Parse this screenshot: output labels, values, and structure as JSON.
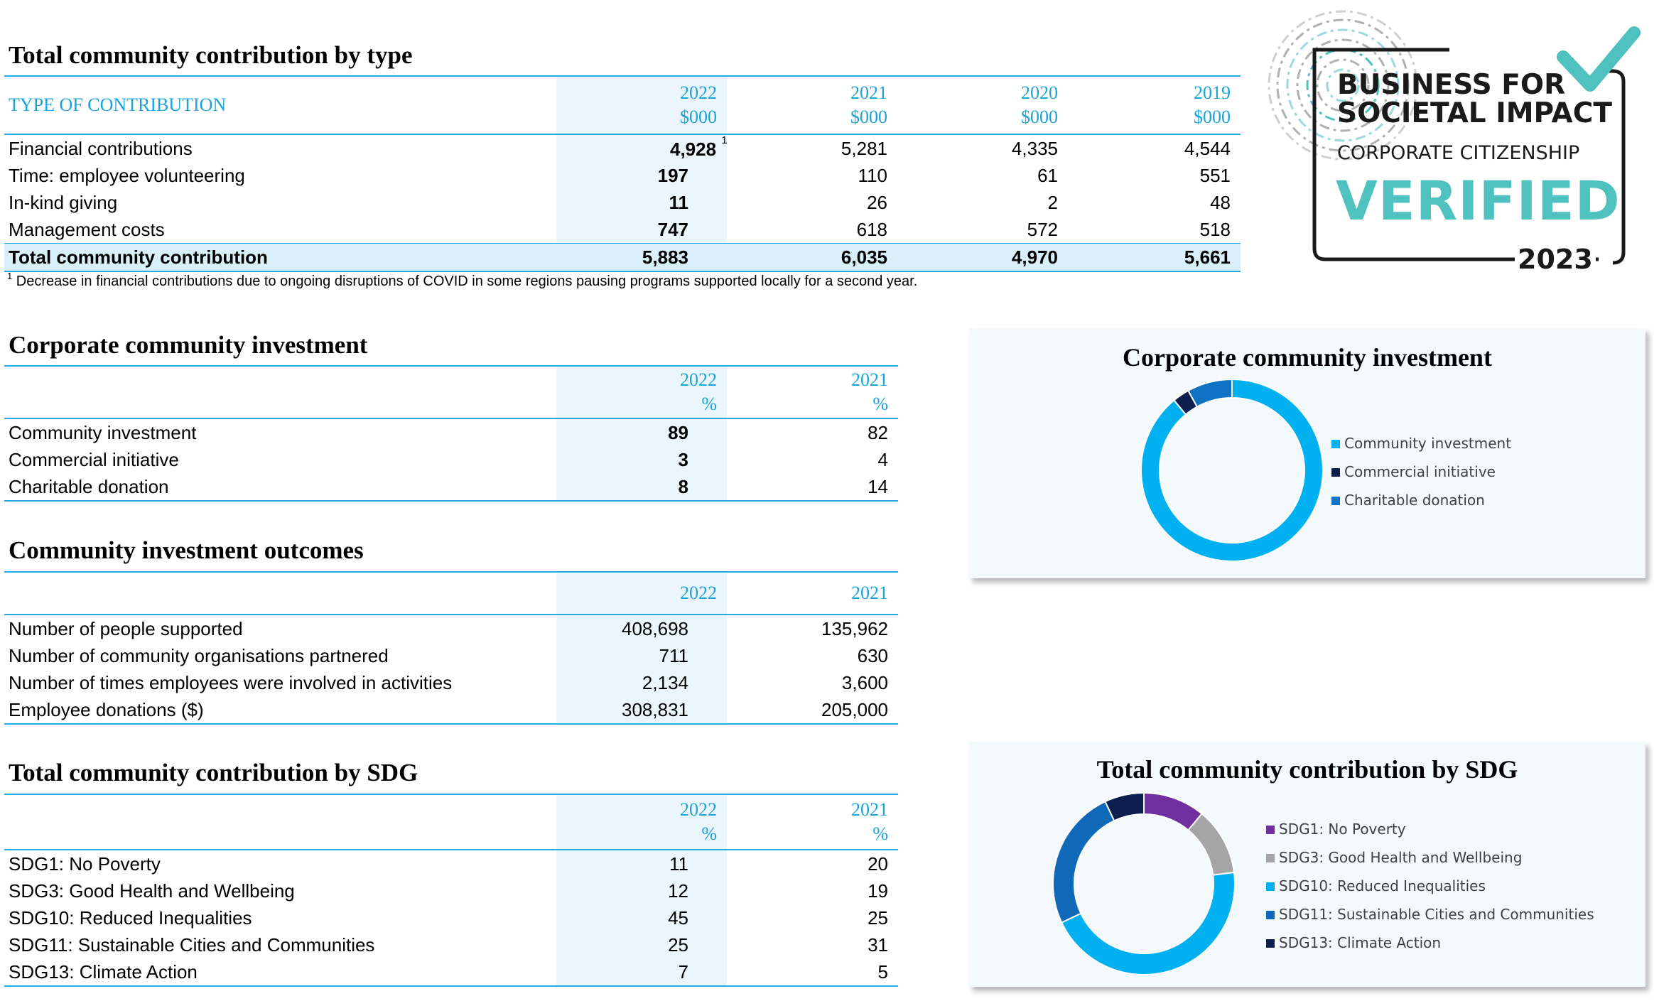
{
  "contribution_by_type": {
    "title": "Total community contribution by type",
    "header_label": "TYPE OF CONTRIBUTION",
    "years": [
      "2022",
      "2021",
      "2020",
      "2019"
    ],
    "unit": "$000",
    "rows": [
      {
        "label": "Financial contributions",
        "values": [
          "4,928",
          "5,281",
          "4,335",
          "4,544"
        ],
        "footnote_mark": "1"
      },
      {
        "label": "Time: employee volunteering",
        "values": [
          "197",
          "110",
          "61",
          "551"
        ]
      },
      {
        "label": "In-kind giving",
        "values": [
          "11",
          "26",
          "2",
          "48"
        ]
      },
      {
        "label": "Management costs",
        "values": [
          "747",
          "618",
          "572",
          "518"
        ]
      }
    ],
    "total": {
      "label": "Total community contribution",
      "values": [
        "5,883",
        "6,035",
        "4,970",
        "5,661"
      ]
    },
    "footnote_mark": "1",
    "footnote": "Decrease in financial contributions due to ongoing disruptions of COVID in some regions pausing programs supported locally for a second year."
  },
  "badge": {
    "line1": "BUSINESS FOR",
    "line2": "SOCIETAL IMPACT",
    "line3": "CORPORATE CITIZENSHIP",
    "verified": "VERIFIED",
    "year": "2023",
    "colors": {
      "teal": "#4fc1bf",
      "dark": "#1a1a1a"
    },
    "icon": "check-mark-icon"
  },
  "corporate_investment": {
    "title": "Corporate community investment",
    "years": [
      "2022",
      "2021"
    ],
    "unit": "%",
    "rows": [
      {
        "label": "Community investment",
        "values": [
          "89",
          "82"
        ]
      },
      {
        "label": "Commercial initiative",
        "values": [
          "3",
          "4"
        ]
      },
      {
        "label": "Charitable donation",
        "values": [
          "8",
          "14"
        ]
      }
    ]
  },
  "outcomes": {
    "title": "Community investment outcomes",
    "years": [
      "2022",
      "2021"
    ],
    "rows": [
      {
        "label": "Number of people supported",
        "values": [
          "408,698",
          "135,962"
        ]
      },
      {
        "label": "Number of community organisations partnered",
        "values": [
          "711",
          "630"
        ]
      },
      {
        "label": "Number of times employees were involved in activities",
        "values": [
          "2,134",
          "3,600"
        ]
      },
      {
        "label": "Employee donations ($)",
        "values": [
          "308,831",
          "205,000"
        ]
      }
    ]
  },
  "sdg": {
    "title": "Total community contribution by SDG",
    "years": [
      "2022",
      "2021"
    ],
    "unit": "%",
    "rows": [
      {
        "label": "SDG1: No Poverty",
        "values": [
          "11",
          "20"
        ]
      },
      {
        "label": "SDG3: Good Health and Wellbeing",
        "values": [
          "12",
          "19"
        ]
      },
      {
        "label": "SDG10: Reduced Inequalities",
        "values": [
          "45",
          "25"
        ]
      },
      {
        "label": "SDG11: Sustainable Cities and Communities",
        "values": [
          "25",
          "31"
        ]
      },
      {
        "label": "SDG13: Climate Action",
        "values": [
          "7",
          "5"
        ]
      }
    ]
  },
  "chart_data": [
    {
      "type": "pie",
      "title": "Corporate community investment",
      "categories": [
        "Community investment",
        "Commercial initiative",
        "Charitable donation"
      ],
      "values": [
        89,
        3,
        8
      ],
      "colors": [
        "#00b0f0",
        "#0c1f4f",
        "#1072c4"
      ],
      "legend": "right"
    },
    {
      "type": "pie",
      "title": "Total community contribution by SDG",
      "categories": [
        "SDG1: No Poverty",
        "SDG3: Good Health and Wellbeing",
        "SDG10: Reduced Inequalities",
        "SDG11: Sustainable Cities and Communities",
        "SDG13: Climate Action"
      ],
      "values": [
        11,
        12,
        45,
        25,
        7
      ],
      "colors": [
        "#7030a0",
        "#a5a5a5",
        "#00b0f0",
        "#1068b8",
        "#0c1f4f"
      ],
      "legend": "right"
    }
  ]
}
